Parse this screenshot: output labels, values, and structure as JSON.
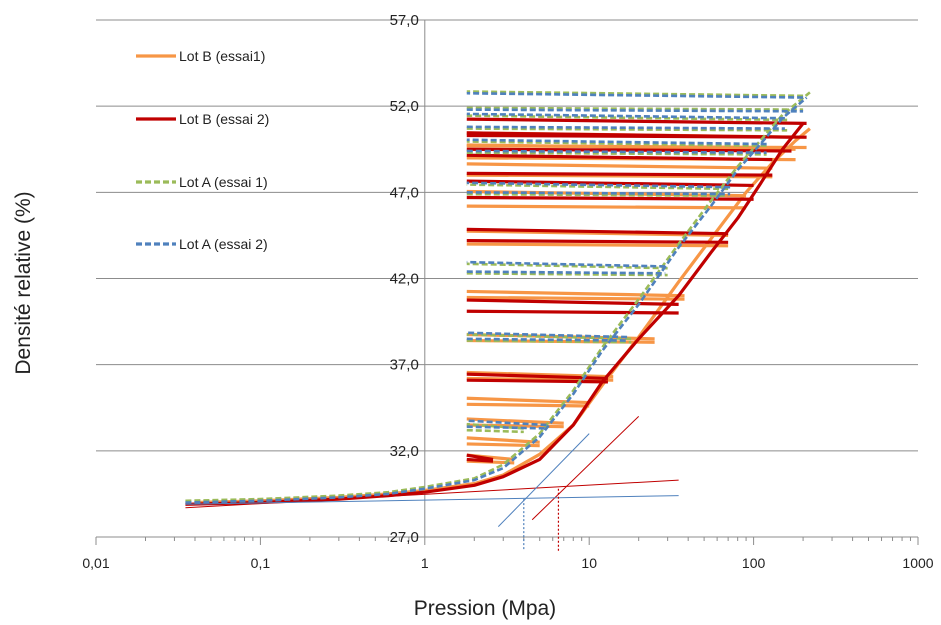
{
  "chart_data": {
    "type": "line",
    "title": "",
    "xlabel": "Pression (Mpa)",
    "ylabel": "Densité relative (%)",
    "x_scale": "log",
    "xlim": [
      0.01,
      1000
    ],
    "ylim": [
      27.0,
      57.0
    ],
    "x_ticks": [
      {
        "value": 0.01,
        "label": "0,01"
      },
      {
        "value": 0.1,
        "label": "0,1"
      },
      {
        "value": 1,
        "label": "1"
      },
      {
        "value": 10,
        "label": "10"
      },
      {
        "value": 100,
        "label": "100"
      },
      {
        "value": 1000,
        "label": "1000"
      }
    ],
    "y_ticks": [
      {
        "value": 27.0,
        "label": "27,0"
      },
      {
        "value": 32.0,
        "label": "32,0"
      },
      {
        "value": 37.0,
        "label": "37,0"
      },
      {
        "value": 42.0,
        "label": "42,0"
      },
      {
        "value": 47.0,
        "label": "47,0"
      },
      {
        "value": 52.0,
        "label": "52,0"
      },
      {
        "value": 57.0,
        "label": "57,0"
      }
    ],
    "grid": "horizontal",
    "legend_position": "top-left",
    "series": [
      {
        "name": "Lot B (essai1)",
        "color": "#f79646",
        "dash": "solid",
        "loading": [
          [
            0.04,
            29.0
          ],
          [
            0.1,
            29.1
          ],
          [
            0.3,
            29.3
          ],
          [
            0.6,
            29.5
          ],
          [
            1.0,
            29.7
          ],
          [
            2.0,
            30.1
          ],
          [
            3.0,
            30.6
          ],
          [
            5.0,
            31.8
          ],
          [
            8.0,
            33.5
          ],
          [
            12.0,
            35.8
          ],
          [
            20.0,
            38.6
          ],
          [
            35.0,
            41.8
          ],
          [
            55.0,
            44.3
          ],
          [
            90.0,
            47.0
          ],
          [
            130.0,
            48.7
          ],
          [
            180.0,
            50.0
          ],
          [
            220.0,
            50.7
          ]
        ],
        "unloading": [
          {
            "p_max": 3.5,
            "y_top": 31.5,
            "y_bottom": 31.3
          },
          {
            "p_max": 5.0,
            "y_top": 32.5,
            "y_bottom": 32.3
          },
          {
            "p_max": 7.0,
            "y_top": 33.6,
            "y_bottom": 33.4
          },
          {
            "p_max": 10.0,
            "y_top": 34.8,
            "y_bottom": 34.6
          },
          {
            "p_max": 14.0,
            "y_top": 36.3,
            "y_bottom": 36.1
          },
          {
            "p_max": 25.0,
            "y_top": 38.5,
            "y_bottom": 38.3
          },
          {
            "p_max": 38.0,
            "y_top": 41.0,
            "y_bottom": 40.8
          },
          {
            "p_max": 70.0,
            "y_top": 44.5,
            "y_bottom": 43.9
          },
          {
            "p_max": 90.0,
            "y_top": 46.8,
            "y_bottom": 46.1
          },
          {
            "p_max": 130.0,
            "y_top": 48.4,
            "y_bottom": 47.9
          },
          {
            "p_max": 180.0,
            "y_top": 49.5,
            "y_bottom": 48.9
          },
          {
            "p_max": 210.0,
            "y_top": 50.2,
            "y_bottom": 49.6
          }
        ]
      },
      {
        "name": "Lot B (essai 2)",
        "color": "#c00000",
        "dash": "solid",
        "loading": [
          [
            0.035,
            28.9
          ],
          [
            0.1,
            29.0
          ],
          [
            0.3,
            29.2
          ],
          [
            0.6,
            29.4
          ],
          [
            1.0,
            29.6
          ],
          [
            2.0,
            30.0
          ],
          [
            3.0,
            30.5
          ],
          [
            5.0,
            31.5
          ],
          [
            8.0,
            33.5
          ],
          [
            12.0,
            36.0
          ],
          [
            20.0,
            38.5
          ],
          [
            35.0,
            41.0
          ],
          [
            55.0,
            43.5
          ],
          [
            80.0,
            45.5
          ],
          [
            110.0,
            47.5
          ],
          [
            150.0,
            49.5
          ],
          [
            200.0,
            51.0
          ]
        ],
        "unloading": [
          {
            "p_max": 2.6,
            "y_top": 31.5,
            "y_bottom": 31.4
          },
          {
            "p_max": 13.0,
            "y_top": 36.2,
            "y_bottom": 36.0
          },
          {
            "p_max": 35.0,
            "y_top": 40.5,
            "y_bottom": 40.0
          },
          {
            "p_max": 70.0,
            "y_top": 44.6,
            "y_bottom": 44.1
          },
          {
            "p_max": 100.0,
            "y_top": 47.4,
            "y_bottom": 46.6
          },
          {
            "p_max": 130.0,
            "y_top": 48.9,
            "y_bottom": 48.0
          },
          {
            "p_max": 170.0,
            "y_top": 50.2,
            "y_bottom": 49.4
          },
          {
            "p_max": 210.0,
            "y_top": 51.0,
            "y_bottom": 50.2
          }
        ]
      },
      {
        "name": "Lot A (essai 1)",
        "color": "#9bbb59",
        "dash": "dashed",
        "loading": [
          [
            0.035,
            29.1
          ],
          [
            0.1,
            29.2
          ],
          [
            0.3,
            29.4
          ],
          [
            0.6,
            29.6
          ],
          [
            1.0,
            29.9
          ],
          [
            2.0,
            30.4
          ],
          [
            3.0,
            31.2
          ],
          [
            5.0,
            33.0
          ],
          [
            8.0,
            35.5
          ],
          [
            12.0,
            38.0
          ],
          [
            20.0,
            40.8
          ],
          [
            35.0,
            44.0
          ],
          [
            55.0,
            46.5
          ],
          [
            80.0,
            48.5
          ],
          [
            110.0,
            50.0
          ],
          [
            150.0,
            51.5
          ],
          [
            220.0,
            52.8
          ]
        ],
        "unloading": [
          {
            "p_max": 4.0,
            "y_top": 33.3,
            "y_bottom": 33.1
          },
          {
            "p_max": 18.0,
            "y_top": 38.5,
            "y_bottom": 38.3
          },
          {
            "p_max": 30.0,
            "y_top": 42.6,
            "y_bottom": 42.2
          },
          {
            "p_max": 70.0,
            "y_top": 47.2,
            "y_bottom": 46.8
          },
          {
            "p_max": 120.0,
            "y_top": 49.7,
            "y_bottom": 49.2
          },
          {
            "p_max": 160.0,
            "y_top": 51.2,
            "y_bottom": 50.6
          },
          {
            "p_max": 200.0,
            "y_top": 52.6,
            "y_bottom": 51.8
          }
        ]
      },
      {
        "name": "Lot A (essai 2)",
        "color": "#4f81bd",
        "dash": "dashed",
        "loading": [
          [
            0.035,
            29.0
          ],
          [
            0.1,
            29.1
          ],
          [
            0.3,
            29.3
          ],
          [
            0.6,
            29.5
          ],
          [
            1.0,
            29.8
          ],
          [
            2.0,
            30.3
          ],
          [
            3.0,
            31.0
          ],
          [
            5.0,
            32.8
          ],
          [
            8.0,
            35.3
          ],
          [
            12.0,
            37.8
          ],
          [
            20.0,
            40.5
          ],
          [
            35.0,
            43.8
          ],
          [
            55.0,
            46.2
          ],
          [
            80.0,
            48.3
          ],
          [
            110.0,
            49.8
          ],
          [
            150.0,
            51.3
          ],
          [
            210.0,
            52.5
          ]
        ],
        "unloading": [
          {
            "p_max": 5.5,
            "y_top": 33.5,
            "y_bottom": 33.3
          },
          {
            "p_max": 17.0,
            "y_top": 38.6,
            "y_bottom": 38.4
          },
          {
            "p_max": 29.0,
            "y_top": 42.7,
            "y_bottom": 42.3
          },
          {
            "p_max": 72.0,
            "y_top": 47.3,
            "y_bottom": 46.9
          },
          {
            "p_max": 120.0,
            "y_top": 49.8,
            "y_bottom": 49.3
          },
          {
            "p_max": 155.0,
            "y_top": 51.3,
            "y_bottom": 50.7
          },
          {
            "p_max": 200.0,
            "y_top": 52.5,
            "y_bottom": 51.7
          }
        ]
      }
    ],
    "tangent_lines": [
      {
        "color": "#c00000",
        "points": [
          [
            0.035,
            28.7
          ],
          [
            35.0,
            30.3
          ]
        ]
      },
      {
        "color": "#c00000",
        "points": [
          [
            4.5,
            28.0
          ],
          [
            20.0,
            34.0
          ]
        ]
      },
      {
        "color": "#4f81bd",
        "points": [
          [
            0.035,
            28.9
          ],
          [
            35.0,
            29.4
          ]
        ]
      },
      {
        "color": "#4f81bd",
        "points": [
          [
            2.8,
            27.6
          ],
          [
            10.0,
            33.0
          ]
        ]
      }
    ],
    "reference_lines": [
      {
        "color": "#4f81bd",
        "x": 4.0,
        "y_top": 29.2
      },
      {
        "color": "#c00000",
        "x": 6.5,
        "y_top": 29.8
      }
    ]
  }
}
